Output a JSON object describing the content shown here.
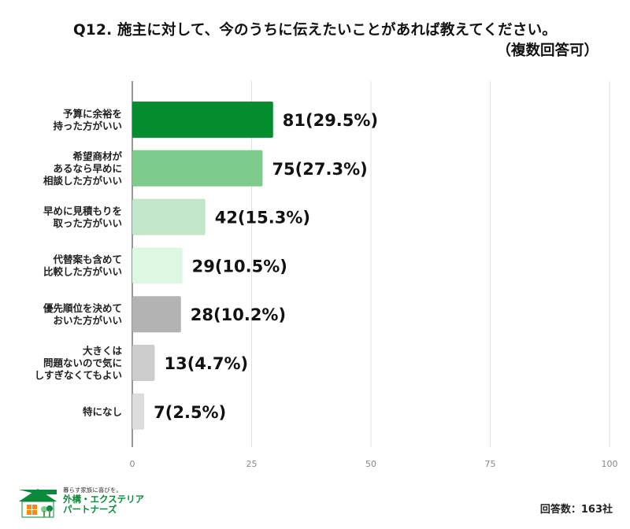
{
  "title": "Q12. 施主に対して、今のうちに伝えたいことがあれば教えてください。",
  "subtitle": "（複数回答可）",
  "chart_data": {
    "type": "bar",
    "orientation": "horizontal",
    "xlim": [
      0,
      100
    ],
    "xticks": [
      0,
      25,
      50,
      75,
      100
    ],
    "grid": true,
    "bars": [
      {
        "category": [
          "予算に余裕を",
          "持った方がいい"
        ],
        "value": 29.5,
        "label": "81(29.5%)",
        "color": "#058c2e"
      },
      {
        "category": [
          "希望商材が",
          "あるなら早めに",
          "相談した方がいい"
        ],
        "value": 27.3,
        "label": "75(27.3%)",
        "color": "#7ecb8e"
      },
      {
        "category": [
          "早めに見積もりを",
          "取った方がいい"
        ],
        "value": 15.3,
        "label": "42(15.3%)",
        "color": "#c2e6c9"
      },
      {
        "category": [
          "代替案も含めて",
          "比較した方がいい"
        ],
        "value": 10.5,
        "label": "29(10.5%)",
        "color": "#ddf8e1"
      },
      {
        "category": [
          "優先順位を決めて",
          "おいた方がいい"
        ],
        "value": 10.2,
        "label": "28(10.2%)",
        "color": "#b3b3b3"
      },
      {
        "category": [
          "大きくは",
          "問題ないので気に",
          "しすぎなくてもよい"
        ],
        "value": 4.7,
        "label": "13(4.7%)",
        "color": "#cccccc"
      },
      {
        "category": [
          "特になし"
        ],
        "value": 2.5,
        "label": "7(2.5%)",
        "color": "#dddddd"
      }
    ]
  },
  "footer": {
    "total": "回答数：163社",
    "logo_tagline": "暮らす家族に喜びを。",
    "logo_name_line1": "外構・エクステリア",
    "logo_name_line2": "パートナーズ",
    "logo_color": "#0a8a3a"
  }
}
